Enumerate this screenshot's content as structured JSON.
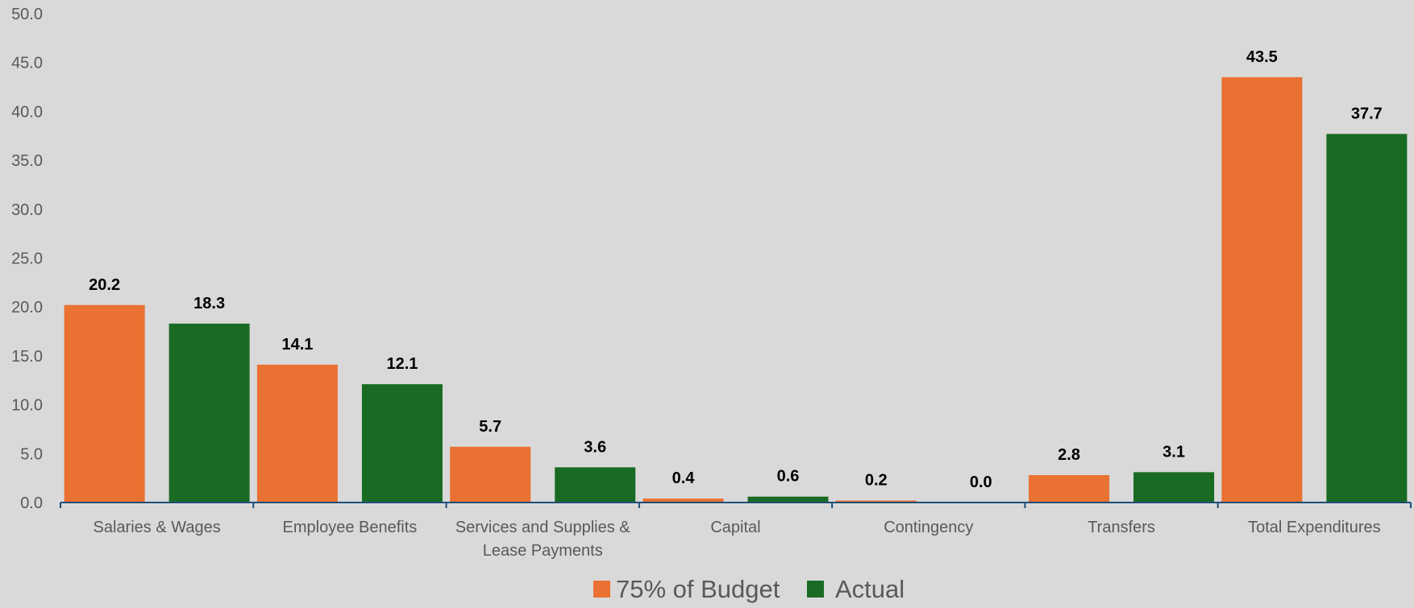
{
  "chart_data": {
    "type": "bar",
    "categories": [
      [
        "Salaries & Wages"
      ],
      [
        "Employee Benefits"
      ],
      [
        "Services and Supplies &",
        "Lease Payments"
      ],
      [
        "Capital"
      ],
      [
        "Contingency"
      ],
      [
        "Transfers"
      ],
      [
        "Total Expenditures"
      ]
    ],
    "series": [
      {
        "name": "75% of Budget",
        "color": "#e97132",
        "values": [
          20.2,
          14.1,
          5.7,
          0.4,
          0.2,
          2.8,
          43.5
        ],
        "labels": [
          "20.2",
          "14.1",
          "5.7",
          "0.4",
          "0.2",
          "2.8",
          "43.5"
        ]
      },
      {
        "name": "Actual",
        "color": "#196b24",
        "values": [
          18.3,
          12.1,
          3.6,
          0.6,
          0.0,
          3.1,
          37.7
        ],
        "labels": [
          "18.3",
          "12.1",
          "3.6",
          "0.6",
          "0.0",
          "3.1",
          "37.7"
        ]
      }
    ],
    "y_ticks": [
      "0.0",
      "5.0",
      "10.0",
      "15.0",
      "20.0",
      "25.0",
      "30.0",
      "35.0",
      "40.0",
      "45.0",
      "50.0"
    ],
    "ylim": [
      0,
      50
    ],
    "grid": false,
    "legend_position": "bottom",
    "axis_color": "#1f4e79"
  }
}
